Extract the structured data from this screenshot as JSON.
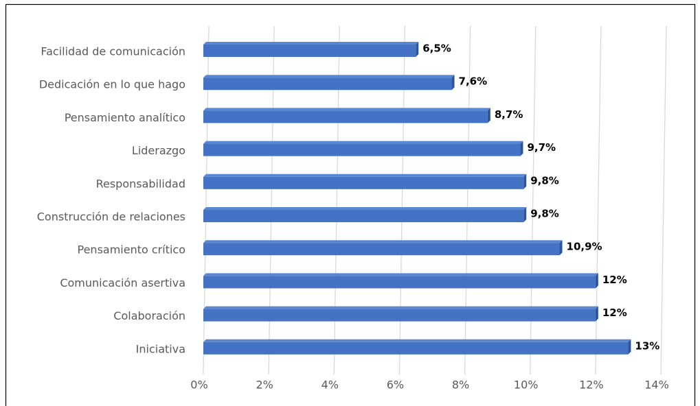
{
  "chart_data": {
    "type": "bar",
    "orientation": "horizontal",
    "categories": [
      "Facilidad de comunicación",
      "Dedicación en lo que hago",
      "Pensamiento analítico",
      "Liderazgo",
      "Responsabilidad",
      "Construcción de relaciones",
      "Pensamiento crítico",
      "Comunicación asertiva",
      "Colaboración",
      "Iniciativa"
    ],
    "values": [
      6.5,
      7.6,
      8.7,
      9.7,
      9.8,
      9.8,
      10.9,
      12,
      12,
      13
    ],
    "value_labels": [
      "6,5%",
      "7,6%",
      "8,7%",
      "9,7%",
      "9,8%",
      "9,8%",
      "10,9%",
      "12%",
      "12%",
      "13%"
    ],
    "color": "#4472c4",
    "xlim": [
      0,
      14
    ],
    "xticks": [
      {
        "value": 0,
        "label": "0%"
      },
      {
        "value": 2,
        "label": "2%"
      },
      {
        "value": 4,
        "label": "4%"
      },
      {
        "value": 6,
        "label": "6%"
      },
      {
        "value": 8,
        "label": "8%"
      },
      {
        "value": 10,
        "label": "10%"
      },
      {
        "value": 12,
        "label": "12%"
      },
      {
        "value": 14,
        "label": "14%"
      }
    ],
    "grid": true
  }
}
